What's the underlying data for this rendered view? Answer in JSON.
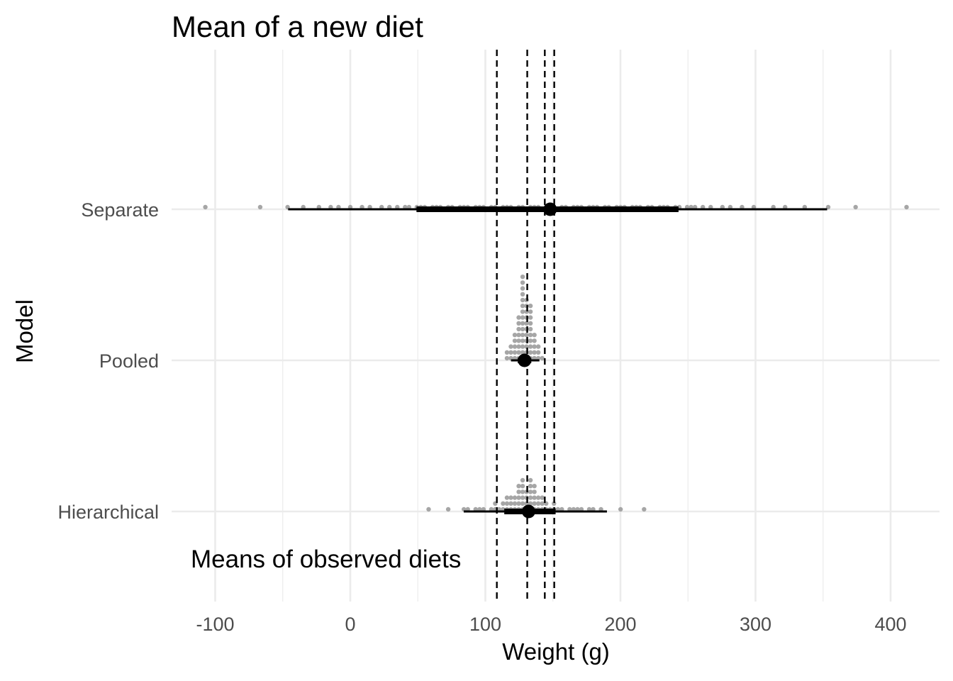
{
  "chart_data": {
    "type": "scatter",
    "title": "Mean of a new diet",
    "xlabel": "Weight (g)",
    "ylabel": "Model",
    "xlim": [
      -125,
      425
    ],
    "x_ticks": [
      -100,
      0,
      100,
      200,
      300,
      400
    ],
    "x_tick_labels": [
      "-100",
      "0",
      "100",
      "200",
      "300",
      "400"
    ],
    "categories": [
      "Separate",
      "Pooled",
      "Hierarchical"
    ],
    "grid": true,
    "legend": "none",
    "reference_lines": {
      "style": "dashed",
      "x": [
        108.5,
        131,
        144,
        151
      ],
      "label": "Means of observed diets"
    },
    "series": [
      {
        "category": "Separate",
        "point_estimate": 148,
        "interval_inner": [
          49,
          243
        ],
        "interval_outer": [
          -46,
          353
        ],
        "samples": [
          -107,
          -67,
          -46,
          -35,
          -23,
          -15,
          -8,
          0,
          8,
          15,
          22,
          28,
          34,
          40,
          44,
          48,
          52,
          56,
          60,
          64,
          68,
          72,
          76,
          80,
          84,
          88,
          92,
          96,
          100,
          104,
          108,
          112,
          116,
          120,
          124,
          128,
          132,
          136,
          140,
          144,
          148,
          152,
          156,
          160,
          164,
          168,
          172,
          176,
          180,
          184,
          188,
          192,
          196,
          200,
          204,
          208,
          212,
          216,
          220,
          224,
          228,
          232,
          236,
          240,
          244,
          248,
          252,
          256,
          262,
          268,
          275,
          282,
          290,
          300,
          312,
          322,
          336,
          354,
          374,
          411
        ]
      },
      {
        "category": "Pooled",
        "point_estimate": 129,
        "interval_inner": [
          124,
          134
        ],
        "interval_outer": [
          119,
          140
        ],
        "samples": [
          115,
          117,
          118,
          119,
          120,
          121,
          122,
          122,
          123,
          123,
          124,
          124,
          125,
          125,
          125,
          126,
          126,
          126,
          127,
          127,
          127,
          127,
          128,
          128,
          128,
          128,
          128,
          129,
          129,
          129,
          129,
          129,
          129,
          130,
          130,
          130,
          130,
          130,
          130,
          131,
          131,
          131,
          131,
          131,
          132,
          132,
          132,
          132,
          133,
          133,
          133,
          134,
          134,
          134,
          135,
          135,
          136,
          136,
          137,
          138,
          139,
          140,
          141
        ]
      },
      {
        "category": "Hierarchical",
        "point_estimate": 132,
        "interval_inner": [
          114,
          152
        ],
        "interval_outer": [
          84,
          190
        ],
        "samples": [
          58,
          73,
          84,
          88,
          92,
          96,
          100,
          103,
          106,
          108,
          110,
          112,
          114,
          115,
          116,
          117,
          118,
          119,
          120,
          121,
          122,
          123,
          124,
          124,
          125,
          126,
          126,
          127,
          127,
          128,
          128,
          129,
          129,
          130,
          130,
          131,
          131,
          132,
          132,
          133,
          133,
          134,
          134,
          135,
          135,
          136,
          137,
          137,
          138,
          139,
          140,
          141,
          142,
          143,
          144,
          146,
          148,
          150,
          152,
          155,
          158,
          161,
          164,
          168,
          172,
          176,
          181,
          187,
          199,
          218
        ]
      }
    ]
  },
  "colors": {
    "dots": "#a6a6a6",
    "interval": "#000000",
    "point": "#000000",
    "grid": "#ebebeb",
    "reference_line": "#000000"
  }
}
